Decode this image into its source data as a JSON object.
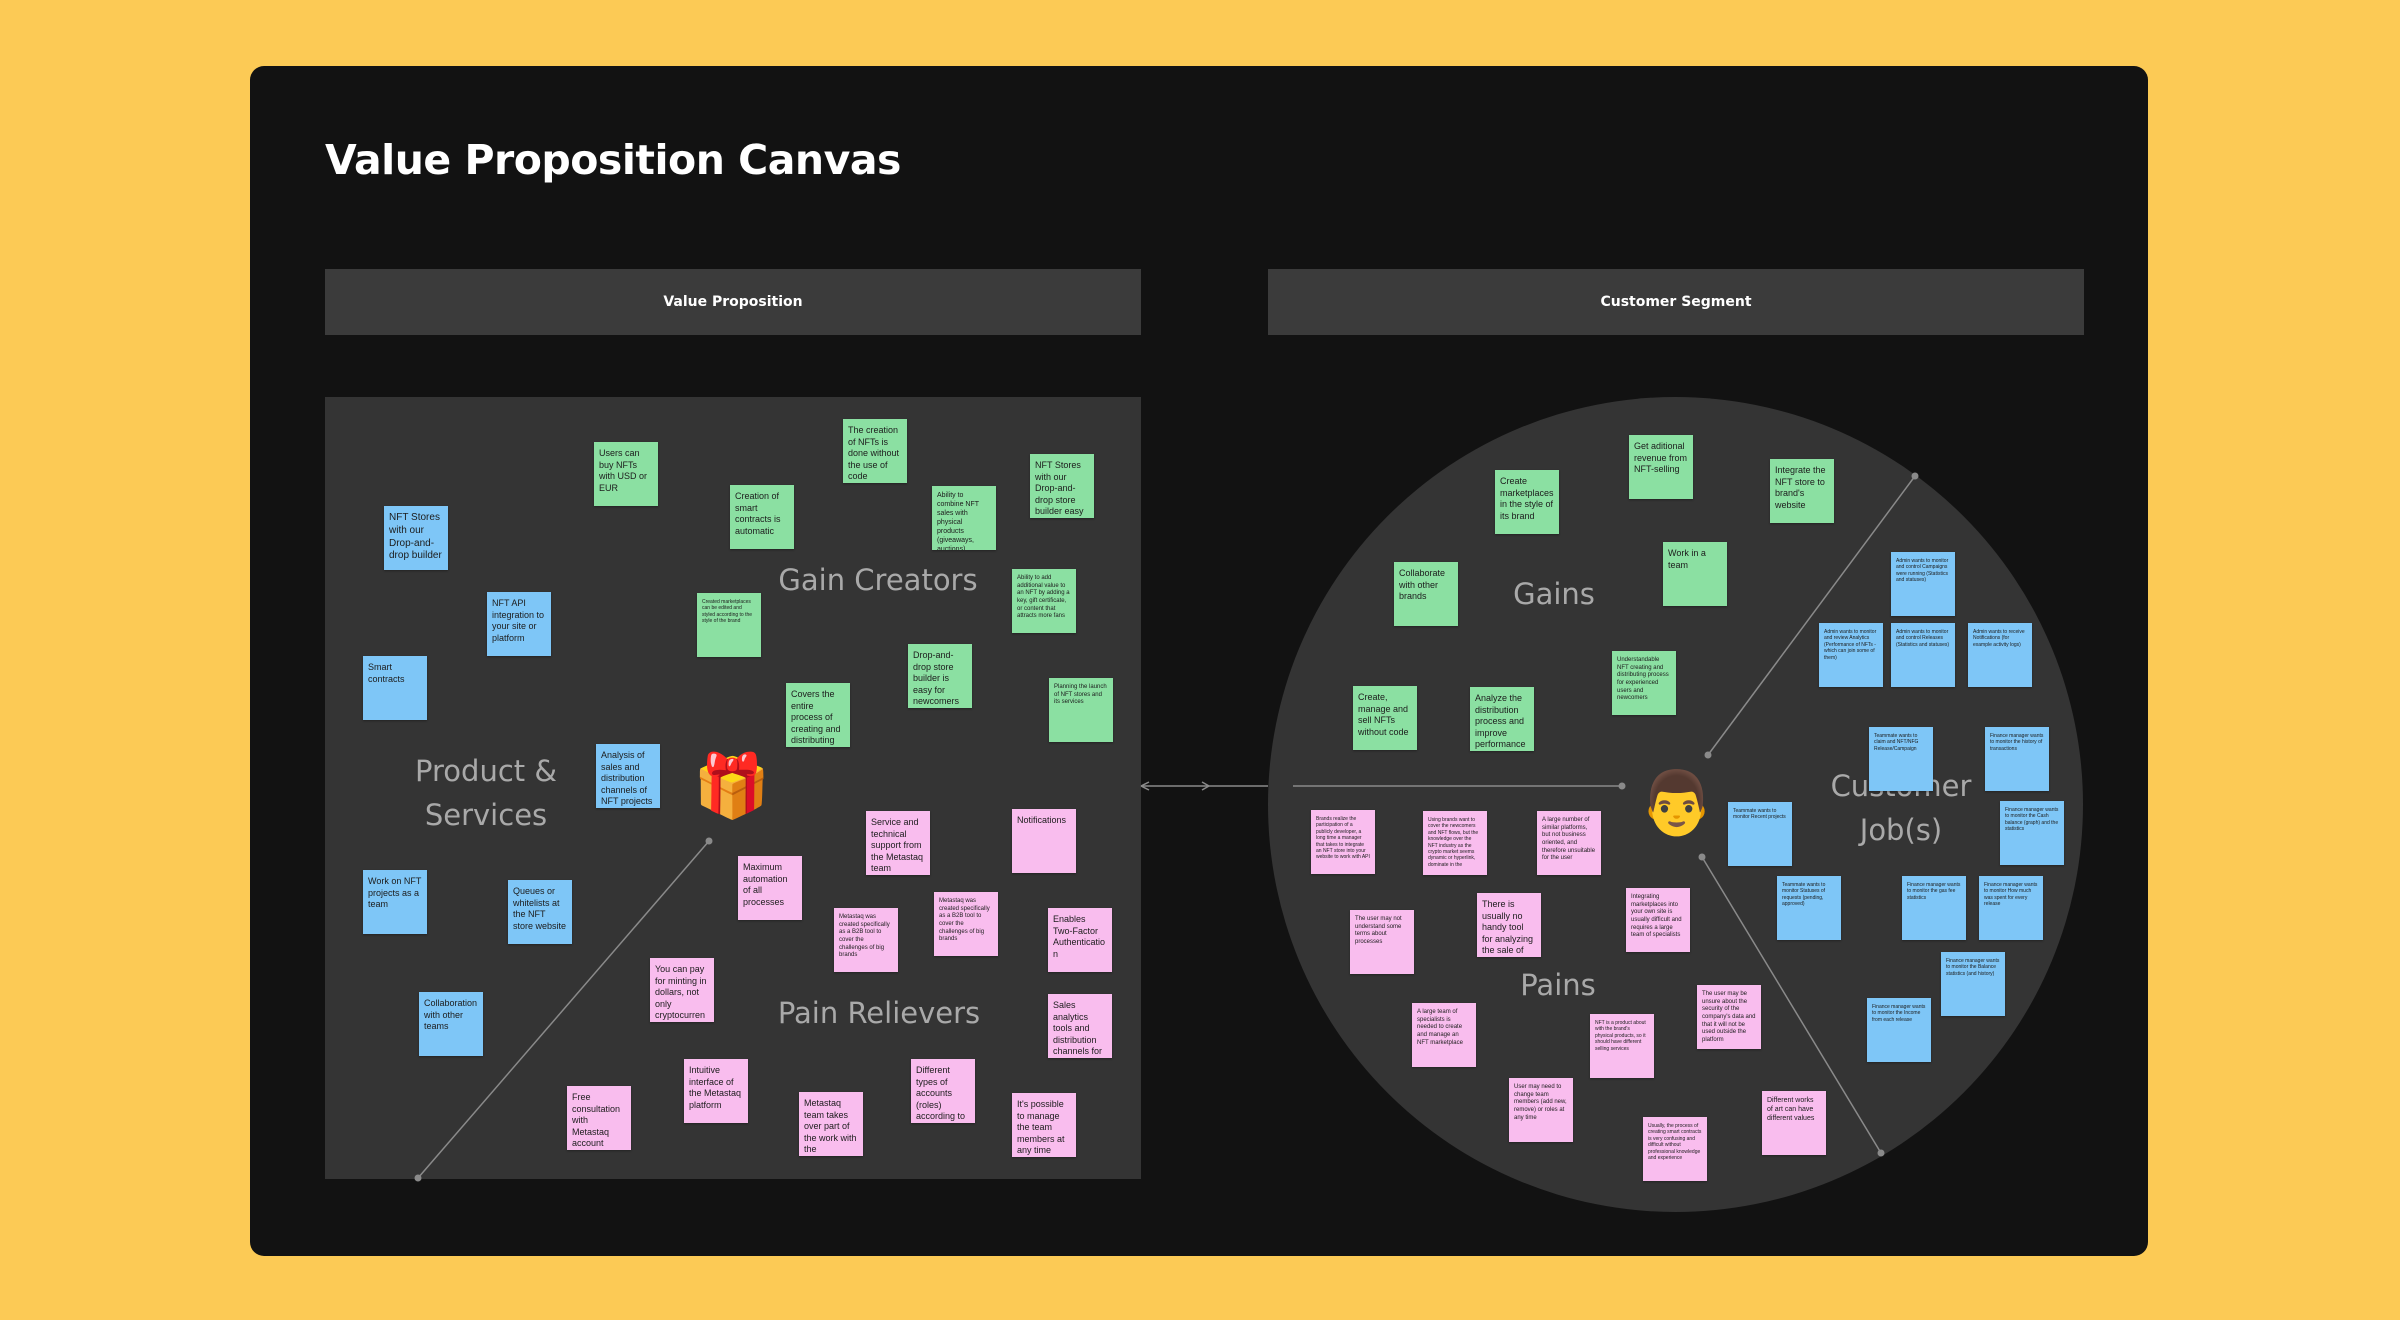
{
  "title": "Value Proposition Canvas",
  "headers": {
    "value_proposition": "Value Proposition",
    "customer_segment": "Customer Segment"
  },
  "zones": {
    "gain_creators": "Gain Creators",
    "product_services": "Product &\nServices",
    "pain_relievers": "Pain Relievers",
    "gains": "Gains",
    "pains": "Pains",
    "customer_jobs": "Customer\nJob(s)"
  },
  "icons": {
    "gift": "gift-icon",
    "person": "person-icon"
  },
  "colors": {
    "background": "#FCCA55",
    "board": "#121212",
    "panel": "#343434",
    "header": "#3b3b3b",
    "blue": "#7EC6F7",
    "green": "#8BE0A2",
    "pink": "#F9BDEE"
  },
  "stickies": [
    {
      "c": "blue",
      "t": "NFT Stores with our Drop-and-drop builder"
    },
    {
      "c": "blue",
      "t": "NFT API integration to your site or platform"
    },
    {
      "c": "blue",
      "t": "Smart contracts"
    },
    {
      "c": "blue",
      "t": "Analysis of sales and distribution channels of NFT projects"
    },
    {
      "c": "blue",
      "t": "Work on NFT projects as a team"
    },
    {
      "c": "blue",
      "t": "Queues or whitelists at the NFT store website"
    },
    {
      "c": "blue",
      "t": "Collaboration with other teams"
    },
    {
      "c": "green",
      "t": "Users can buy NFTs with USD or EUR"
    },
    {
      "c": "green",
      "t": "The creation of NFTs is done without the use of code"
    },
    {
      "c": "green",
      "t": "Creation of smart contracts is automatic"
    },
    {
      "c": "green",
      "t": "Ability to combine NFT sales with physical products (giveaways, auctions)"
    },
    {
      "c": "green",
      "t": "NFT Stores with our Drop-and-drop store builder easy for"
    },
    {
      "c": "green",
      "t": "Ability to add additional value to an NFT by adding a key, gift certificate, or content that attracts more fans"
    },
    {
      "c": "green",
      "t": "Created marketplaces can be edited and styled according to the style of the brand"
    },
    {
      "c": "green",
      "t": "Drop-and-drop store builder is easy for newcomers to NFT"
    },
    {
      "c": "green",
      "t": "Covers the entire process of creating and distributing NFTs"
    },
    {
      "c": "green",
      "t": "Planning the launch of NFT stores and its services"
    },
    {
      "c": "pink",
      "t": "Service and technical support from the Metastaq team"
    },
    {
      "c": "pink",
      "t": "Notifications"
    },
    {
      "c": "pink",
      "t": "Maximum automation of all processes"
    },
    {
      "c": "pink",
      "t": "Metastaq was created specifically as a B2B tool to cover the challenges of big brands"
    },
    {
      "c": "pink",
      "t": "Metastaq was created specifically as a B2B tool to cover the challenges of big brands"
    },
    {
      "c": "pink",
      "t": "Enables Two-Factor Authentication"
    },
    {
      "c": "pink",
      "t": "You can pay for minting in dollars, not only cryptocurrency"
    },
    {
      "c": "pink",
      "t": "Sales analytics tools and distribution channels for NFT projects"
    },
    {
      "c": "pink",
      "t": "Intuitive interface of the Metastaq platform"
    },
    {
      "c": "pink",
      "t": "Different types of accounts (roles) according to responsibilities"
    },
    {
      "c": "pink",
      "t": "Free consultation with Metastaq account manager"
    },
    {
      "c": "pink",
      "t": "Metastaq team takes over part of the work with the marketplace"
    },
    {
      "c": "pink",
      "t": "It's possible to manage the team members at any time"
    },
    {
      "c": "green",
      "t": "Get aditional revenue from NFT-selling"
    },
    {
      "c": "green",
      "t": "Create marketplaces in the style of its brand"
    },
    {
      "c": "green",
      "t": "Integrate the NFT store to brand's website"
    },
    {
      "c": "green",
      "t": "Work in a team"
    },
    {
      "c": "green",
      "t": "Collaborate with other brands"
    },
    {
      "c": "green",
      "t": "Understandable NFT creating and distributing process for experienced users and newcomers"
    },
    {
      "c": "green",
      "t": "Create, manage and sell NFTs without code"
    },
    {
      "c": "green",
      "t": "Analyze the distribution process and improve performance"
    },
    {
      "c": "pink",
      "t": "Brands realize the participation of a publicly developer, a long time a manager that takes to integrate an NFT store into your website to work with API"
    },
    {
      "c": "pink",
      "t": "Using brands want to cover the newcomers and NFT flows, but the knowledge over the NFT industry as the crypto market seems dynamic or hyperlink, dominate in the"
    },
    {
      "c": "pink",
      "t": "A large number of similar platforms, but not business oriented, and therefore unsuitable for the user"
    },
    {
      "c": "pink",
      "t": "The user may not understand some terms about processes"
    },
    {
      "c": "pink",
      "t": "There is usually no handy tool for analyzing the sale of your NFT collection"
    },
    {
      "c": "pink",
      "t": "Integrating marketplaces into your own site is usually difficult and requires a large team of specialists"
    },
    {
      "c": "pink",
      "t": "A large team of specialists is needed to create and manage an NFT marketplace"
    },
    {
      "c": "pink",
      "t": "NFT is a product about with the brand's physical products, so it should have different selling services"
    },
    {
      "c": "pink",
      "t": "The user may be unsure about the security of the company's data and that it will not be used outside the platform"
    },
    {
      "c": "pink",
      "t": "User may need to change team members (add new, remove) or roles at any time"
    },
    {
      "c": "pink",
      "t": "Usually, the process of creating smart contracts is very confusing and difficult without professional knowledge and experience"
    },
    {
      "c": "pink",
      "t": "Different works of art can have different values"
    },
    {
      "c": "blue",
      "t": "Admin wants to monitor and control Campaigns were running (Statistics and statuses)"
    },
    {
      "c": "blue",
      "t": "Admin wants to monitor and review Analytics (Performance of NFTs - which can join some of them)"
    },
    {
      "c": "blue",
      "t": "Admin wants to monitor and control Releases (Statistics and statuses)"
    },
    {
      "c": "blue",
      "t": "Admin wants to receive Notifications (for example activity logs)"
    },
    {
      "c": "blue",
      "t": "Teammate wants to claim and NFT/NFG Release/Campaign"
    },
    {
      "c": "blue",
      "t": "Finance manager wants to monitor the history of transactions"
    },
    {
      "c": "blue",
      "t": "Teammate wants to monitor Recent projects"
    },
    {
      "c": "blue",
      "t": "Finance manager wants to monitor the Cash balance (graph) and the statistics"
    },
    {
      "c": "blue",
      "t": "Teammate wants to monitor Statuses of requests (pending, approved)"
    },
    {
      "c": "blue",
      "t": "Finance manager wants to monitor the gas fee statistics"
    },
    {
      "c": "blue",
      "t": "Finance manager wants to monitor How much was spent for every release"
    },
    {
      "c": "blue",
      "t": "Finance manager wants to monitor the Balance statistics (and history)"
    },
    {
      "c": "blue",
      "t": "Finance manager wants to monitor the Income from each release"
    }
  ]
}
